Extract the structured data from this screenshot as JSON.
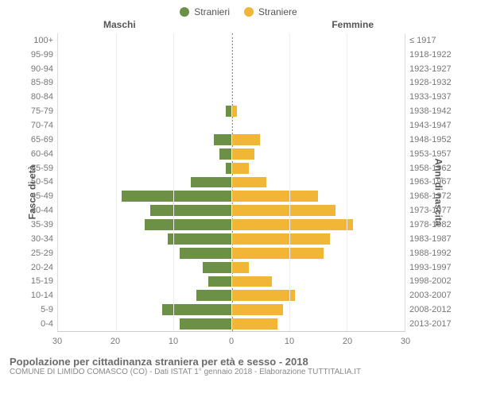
{
  "legend": {
    "male": {
      "label": "Stranieri",
      "color": "#6d9047"
    },
    "female": {
      "label": "Straniere",
      "color": "#f2b636"
    }
  },
  "group_labels": {
    "male": "Maschi",
    "female": "Femmine"
  },
  "axis_titles": {
    "left": "Fasce di età",
    "right": "Anni di nascita"
  },
  "x_axis": {
    "max": 30,
    "ticks": [
      30,
      20,
      10,
      0,
      10,
      20,
      30
    ]
  },
  "colors": {
    "bar_male": "#6d9047",
    "bar_female": "#f2b636",
    "grid": "#eeeeee",
    "center_dash": "#888888",
    "text": "#555555"
  },
  "rows": [
    {
      "age": "100+",
      "birth": "≤ 1917",
      "m": 0,
      "f": 0
    },
    {
      "age": "95-99",
      "birth": "1918-1922",
      "m": 0,
      "f": 0
    },
    {
      "age": "90-94",
      "birth": "1923-1927",
      "m": 0,
      "f": 0
    },
    {
      "age": "85-89",
      "birth": "1928-1932",
      "m": 0,
      "f": 0
    },
    {
      "age": "80-84",
      "birth": "1933-1937",
      "m": 0,
      "f": 0
    },
    {
      "age": "75-79",
      "birth": "1938-1942",
      "m": 1,
      "f": 1
    },
    {
      "age": "70-74",
      "birth": "1943-1947",
      "m": 0,
      "f": 0
    },
    {
      "age": "65-69",
      "birth": "1948-1952",
      "m": 3,
      "f": 5
    },
    {
      "age": "60-64",
      "birth": "1953-1957",
      "m": 2,
      "f": 4
    },
    {
      "age": "55-59",
      "birth": "1958-1962",
      "m": 1,
      "f": 3
    },
    {
      "age": "50-54",
      "birth": "1963-1967",
      "m": 7,
      "f": 6
    },
    {
      "age": "45-49",
      "birth": "1968-1972",
      "m": 19,
      "f": 15
    },
    {
      "age": "40-44",
      "birth": "1973-1977",
      "m": 14,
      "f": 18
    },
    {
      "age": "35-39",
      "birth": "1978-1982",
      "m": 15,
      "f": 21
    },
    {
      "age": "30-34",
      "birth": "1983-1987",
      "m": 11,
      "f": 17
    },
    {
      "age": "25-29",
      "birth": "1988-1992",
      "m": 9,
      "f": 16
    },
    {
      "age": "20-24",
      "birth": "1993-1997",
      "m": 5,
      "f": 3
    },
    {
      "age": "15-19",
      "birth": "1998-2002",
      "m": 4,
      "f": 7
    },
    {
      "age": "10-14",
      "birth": "2003-2007",
      "m": 6,
      "f": 11
    },
    {
      "age": "5-9",
      "birth": "2008-2012",
      "m": 12,
      "f": 9
    },
    {
      "age": "0-4",
      "birth": "2013-2017",
      "m": 9,
      "f": 8
    }
  ],
  "footer": {
    "title": "Popolazione per cittadinanza straniera per età e sesso - 2018",
    "subtitle": "COMUNE DI LIMIDO COMASCO (CO) - Dati ISTAT 1° gennaio 2018 - Elaborazione TUTTITALIA.IT"
  }
}
